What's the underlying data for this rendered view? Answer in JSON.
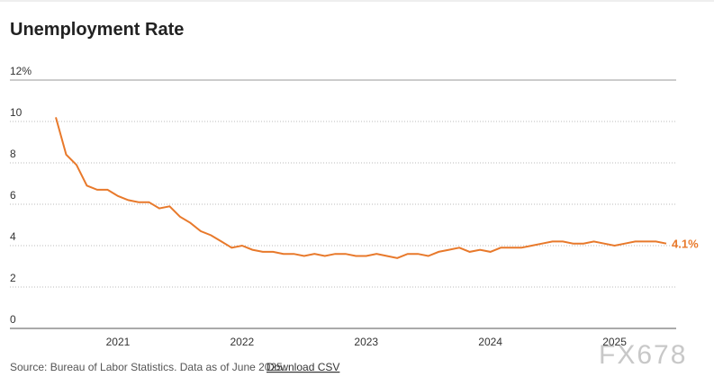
{
  "chart_data": {
    "type": "line",
    "title": "Unemployment Rate",
    "categories": [
      null,
      null,
      null,
      null,
      null,
      null,
      "2021",
      null,
      null,
      null,
      null,
      null,
      null,
      null,
      null,
      null,
      null,
      null,
      "2022",
      null,
      null,
      null,
      null,
      null,
      null,
      null,
      null,
      null,
      null,
      null,
      "2023",
      null,
      null,
      null,
      null,
      null,
      null,
      null,
      null,
      null,
      null,
      null,
      "2024",
      null,
      null,
      null,
      null,
      null,
      null,
      null,
      null,
      null,
      null,
      null,
      "2025",
      null,
      null,
      null,
      null,
      null
    ],
    "series": [
      {
        "name": "Unemployment Rate",
        "color": "#e8792b",
        "values": [
          10.2,
          8.4,
          7.9,
          6.9,
          6.7,
          6.7,
          6.4,
          6.2,
          6.1,
          6.1,
          5.8,
          5.9,
          5.4,
          5.1,
          4.7,
          4.5,
          4.2,
          3.9,
          4.0,
          3.8,
          3.7,
          3.7,
          3.6,
          3.6,
          3.5,
          3.6,
          3.5,
          3.6,
          3.6,
          3.5,
          3.5,
          3.6,
          3.5,
          3.4,
          3.6,
          3.6,
          3.5,
          3.7,
          3.8,
          3.9,
          3.7,
          3.8,
          3.7,
          3.9,
          3.9,
          3.9,
          4.0,
          4.1,
          4.2,
          4.2,
          4.1,
          4.1,
          4.2,
          4.1,
          4.0,
          4.1,
          4.2,
          4.2,
          4.2,
          4.1
        ],
        "value_labels": [
          null,
          null,
          null,
          null,
          null,
          null,
          null,
          null,
          null,
          null,
          null,
          null,
          null,
          null,
          null,
          null,
          null,
          null,
          null,
          null,
          null,
          null,
          null,
          null,
          null,
          null,
          null,
          null,
          null,
          null,
          null,
          null,
          null,
          null,
          null,
          null,
          null,
          null,
          null,
          null,
          null,
          null,
          null,
          null,
          null,
          null,
          null,
          null,
          null,
          null,
          null,
          null,
          null,
          null,
          null,
          null,
          null,
          null,
          null,
          "4.1%"
        ]
      }
    ],
    "ylim": [
      0,
      12
    ],
    "yticks": [
      0,
      2,
      4,
      6,
      8,
      10,
      {
        "value": 12,
        "label": "12%"
      }
    ],
    "grid": true,
    "source": "Source: Bureau of Labor Statistics. Data as of June 2025.",
    "link": "Download CSV",
    "watermark": "FX678"
  }
}
